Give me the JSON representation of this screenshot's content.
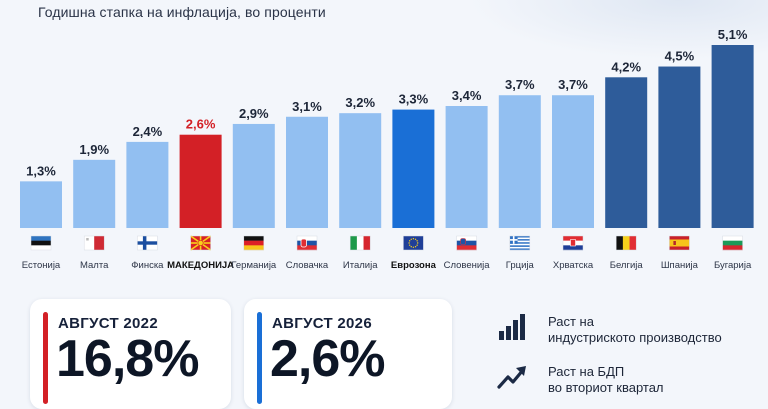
{
  "subtitle": "Годишна стапка на инфлација, во проценти",
  "colors": {
    "light_bar": "#92bff1",
    "highlight_bar": "#d32026",
    "eurozone_bar": "#1a6fd6",
    "dark_bar": "#2e5c9a"
  },
  "chart_data": {
    "type": "bar",
    "categories": [
      "Естонија",
      "Малта",
      "Финска",
      "МАКЕДОНИЈА",
      "Германија",
      "Словачка",
      "Италија",
      "Еврозона",
      "Словенија",
      "Грција",
      "Хрватска",
      "Белгија",
      "Шпанија",
      "Бугарија"
    ],
    "values": [
      1.3,
      1.9,
      2.4,
      2.6,
      2.9,
      3.1,
      3.2,
      3.3,
      3.4,
      3.7,
      3.7,
      4.2,
      4.5,
      5.1
    ],
    "value_labels": [
      "1,3%",
      "1,9%",
      "2,4%",
      "2,6%",
      "2,9%",
      "3,1%",
      "3,2%",
      "3,3%",
      "3,4%",
      "3,7%",
      "3,7%",
      "4,2%",
      "4,5%",
      "5,1%"
    ],
    "bar_styles": [
      "light",
      "light",
      "light",
      "highlight",
      "light",
      "light",
      "light",
      "eurozone",
      "light",
      "light",
      "light",
      "dark",
      "dark",
      "dark"
    ],
    "flags": [
      "estonia-flag-icon",
      "malta-flag-icon",
      "finland-flag-icon",
      "north-macedonia-flag-icon",
      "germany-flag-icon",
      "slovakia-flag-icon",
      "italy-flag-icon",
      "eu-flag-icon",
      "slovenia-flag-icon",
      "greece-flag-icon",
      "croatia-flag-icon",
      "belgium-flag-icon",
      "spain-flag-icon",
      "bulgaria-flag-icon"
    ],
    "bold_labels": [
      "МАКЕДОНИЈА",
      "Еврозона"
    ],
    "title": "Годишна стапка на инфлација, во проценти",
    "ylim": [
      0,
      5.1
    ],
    "grid": false
  },
  "cards": [
    {
      "period": "АВГУСТ 2022",
      "value": "16,8%",
      "accent": "#d32026"
    },
    {
      "period": "АВГУСТ 2026",
      "value": "2,6%",
      "accent": "#1a6fd6"
    }
  ],
  "side": [
    {
      "icon": "bar-chart-icon",
      "line1": "Раст на",
      "line2": "индустриското производство"
    },
    {
      "icon": "trend-up-icon",
      "line1": "Раст на БДП",
      "line2": "во вториот квартал"
    }
  ]
}
